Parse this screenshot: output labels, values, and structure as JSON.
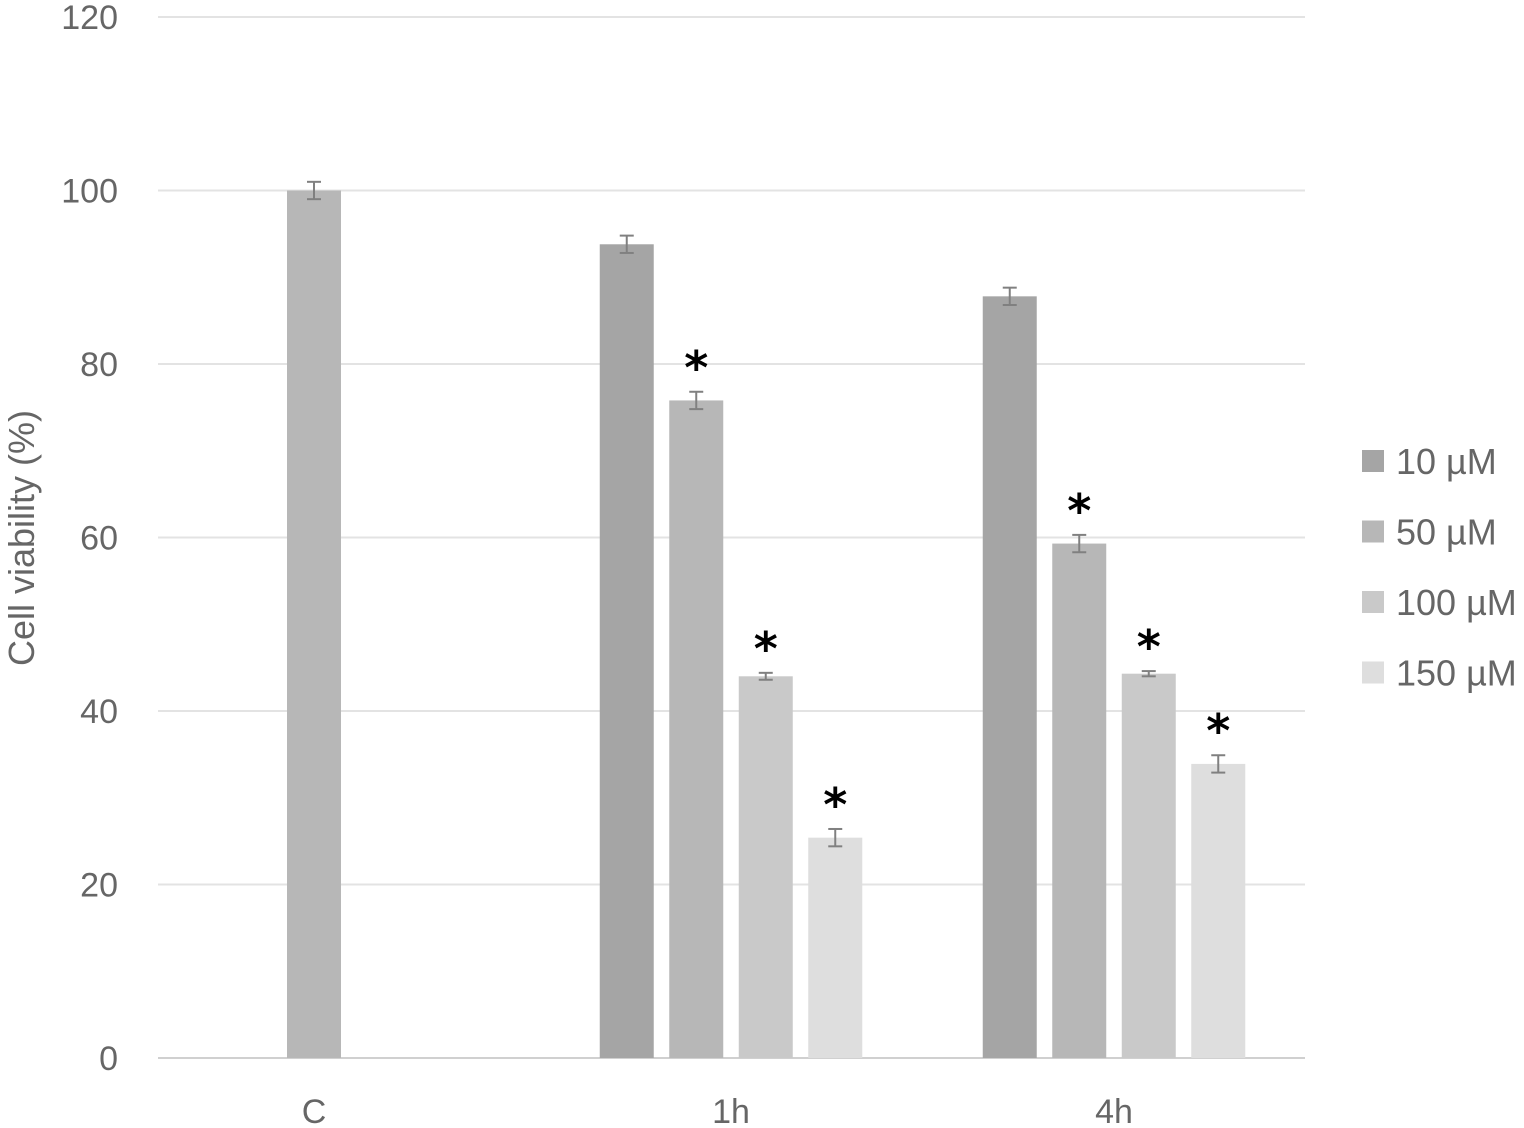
{
  "chart_data": {
    "type": "bar",
    "title": "",
    "xlabel": "",
    "ylabel": "Cell viability (%)",
    "ylim": [
      0,
      120
    ],
    "yticks": [
      "0",
      "20",
      "40",
      "60",
      "80",
      "100",
      "120"
    ],
    "grid": true,
    "legend_position": "right",
    "categories": [
      "C",
      "1h",
      "4h"
    ],
    "series": [
      {
        "name": "10 µM",
        "color": "#a5a5a5",
        "values": [
          null,
          93.8,
          87.8
        ],
        "errors": [
          null,
          1.0,
          1.0
        ],
        "significant": [
          false,
          false,
          false
        ]
      },
      {
        "name": "50 µM",
        "color": "#b7b7b7",
        "values": [
          100,
          75.8,
          59.3
        ],
        "errors": [
          1.0,
          1.0,
          1.0
        ],
        "significant": [
          false,
          true,
          true
        ]
      },
      {
        "name": "100 µM",
        "color": "#c9c9c9",
        "values": [
          null,
          44.0,
          44.3
        ],
        "errors": [
          null,
          0.4,
          0.3
        ],
        "significant": [
          false,
          true,
          true
        ]
      },
      {
        "name": "150 µM",
        "color": "#dedede",
        "values": [
          null,
          25.4,
          33.9
        ],
        "errors": [
          null,
          1.0,
          1.0
        ],
        "significant": [
          false,
          true,
          true
        ]
      }
    ],
    "significance_symbol": "*"
  }
}
